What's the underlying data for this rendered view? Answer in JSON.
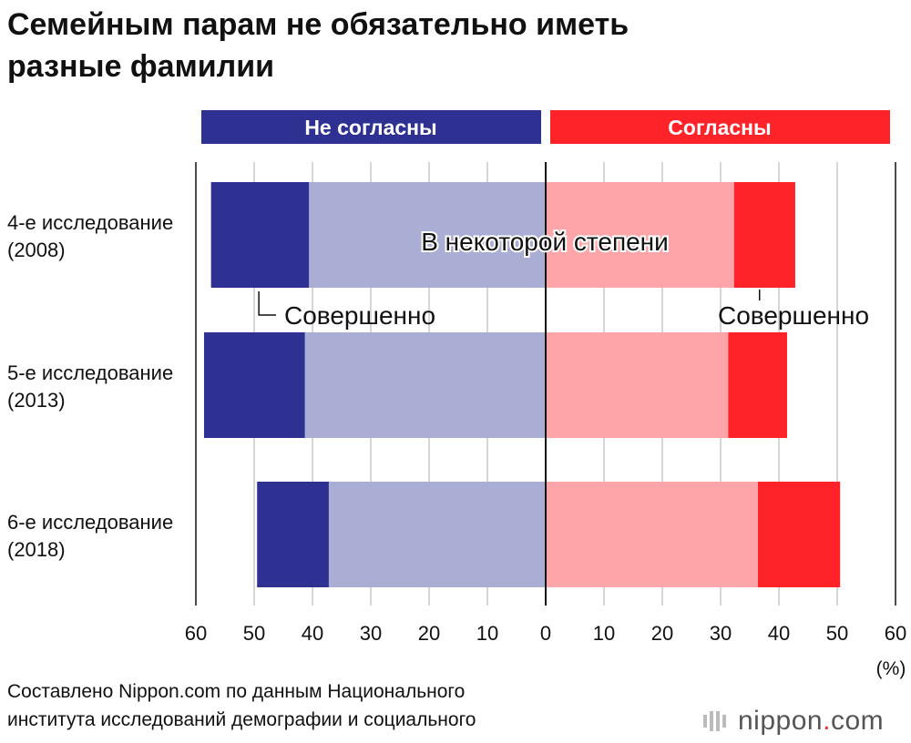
{
  "title_lines": [
    "Семейным парам не обязательно иметь",
    "разные фамилии"
  ],
  "legend": {
    "disagree": "Не согласны",
    "agree": "Согласны"
  },
  "annotations": {
    "somewhat": "В некоторой степени",
    "strongly_left": "Совершенно",
    "strongly_right": "Совершенно"
  },
  "source_lines": [
    "Составлено Nippon.com по данным Национального",
    "института исследований демографии и социального"
  ],
  "logo": {
    "name": "nippon",
    "dot": ".",
    "tld": "com"
  },
  "colors": {
    "disagree_strong": "#2e3192",
    "disagree_some": "#aaadd4",
    "agree_some": "#fda5a8",
    "agree_strong": "#fe2229",
    "grid": "#bbbbbb",
    "axis": "#111111"
  },
  "chart_data": {
    "type": "bar",
    "orientation": "horizontal-diverging",
    "categories": [
      [
        "4-е исследование",
        "(2008)"
      ],
      [
        "5-е исследование",
        "(2013)"
      ],
      [
        "6-е исследование",
        "(2018)"
      ]
    ],
    "series": [
      {
        "side": "disagree",
        "level": "strong",
        "values": [
          16.8,
          17.3,
          12.3
        ]
      },
      {
        "side": "disagree",
        "level": "some",
        "values": [
          40.6,
          41.3,
          37.2
        ]
      },
      {
        "side": "agree",
        "level": "some",
        "values": [
          32.3,
          31.3,
          36.4
        ]
      },
      {
        "side": "agree",
        "level": "strong",
        "values": [
          10.5,
          10.1,
          14.1
        ]
      }
    ],
    "xlim": [
      -60,
      60
    ],
    "xticks": [
      -60,
      -50,
      -40,
      -30,
      -20,
      -10,
      0,
      10,
      20,
      30,
      40,
      50,
      60
    ],
    "xtick_labels": [
      "60",
      "50",
      "40",
      "30",
      "20",
      "10",
      "0",
      "10",
      "20",
      "30",
      "40",
      "50",
      "60"
    ],
    "unit": "(%)",
    "grid": true
  }
}
